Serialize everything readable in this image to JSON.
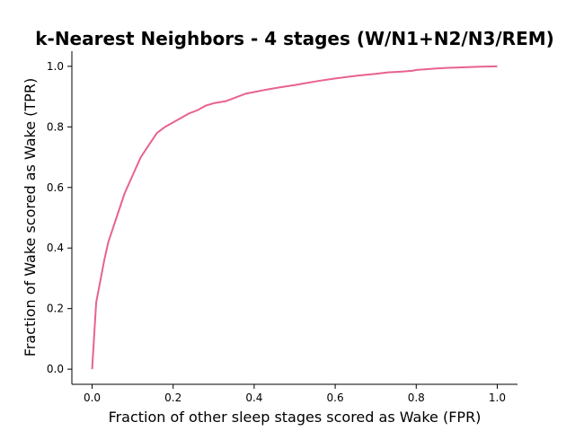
{
  "chart_data": {
    "type": "line",
    "title": "k-Nearest Neighbors - 4 stages (W/N1+N2/N3/REM)",
    "xlabel": "Fraction of other sleep stages scored as Wake (FPR)",
    "ylabel": "Fraction of Wake scored as Wake (TPR)",
    "xlim": [
      -0.05,
      1.05
    ],
    "ylim": [
      -0.05,
      1.05
    ],
    "xticks": [
      "0.0",
      "0.2",
      "0.4",
      "0.6",
      "0.8",
      "1.0"
    ],
    "yticks": [
      "0.0",
      "0.2",
      "0.4",
      "0.6",
      "0.8",
      "1.0"
    ],
    "grid": false,
    "series": [
      {
        "color": "#e8628f",
        "x": [
          0.0,
          0.01,
          0.02,
          0.03,
          0.04,
          0.06,
          0.08,
          0.1,
          0.12,
          0.14,
          0.16,
          0.18,
          0.2,
          0.22,
          0.24,
          0.26,
          0.28,
          0.3,
          0.33,
          0.36,
          0.38,
          0.4,
          0.43,
          0.46,
          0.5,
          0.53,
          0.56,
          0.6,
          0.63,
          0.66,
          0.7,
          0.73,
          0.76,
          0.79,
          0.8,
          0.82,
          0.85,
          0.88,
          0.92,
          0.96,
          1.0
        ],
        "y": [
          0.0,
          0.22,
          0.29,
          0.36,
          0.42,
          0.5,
          0.58,
          0.64,
          0.7,
          0.74,
          0.78,
          0.8,
          0.815,
          0.83,
          0.845,
          0.855,
          0.87,
          0.878,
          0.885,
          0.9,
          0.91,
          0.915,
          0.923,
          0.93,
          0.938,
          0.945,
          0.952,
          0.96,
          0.965,
          0.97,
          0.975,
          0.98,
          0.982,
          0.985,
          0.988,
          0.99,
          0.993,
          0.995,
          0.997,
          0.999,
          1.0
        ]
      }
    ]
  }
}
